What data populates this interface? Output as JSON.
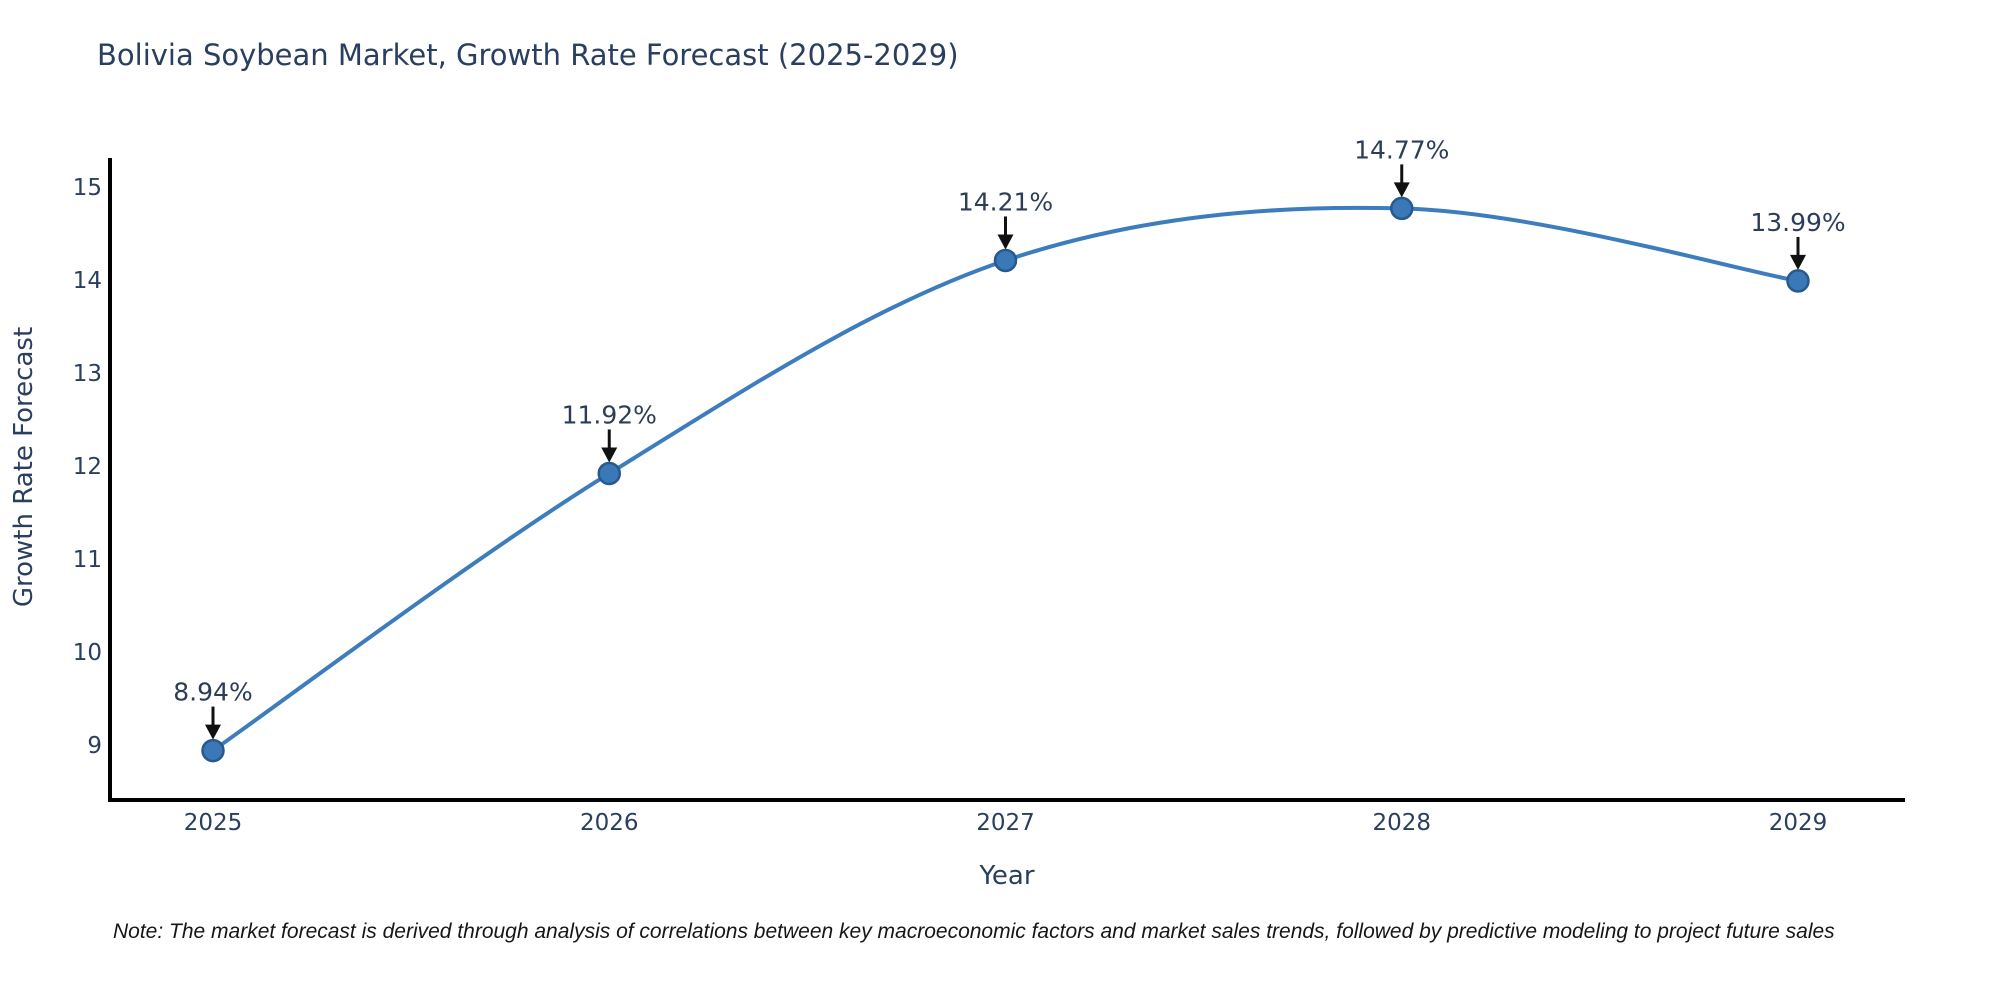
{
  "title": "Bolivia Soybean Market, Growth Rate Forecast (2025-2029)",
  "note": "Note: The market forecast is derived through analysis of correlations between key macroeconomic factors and market sales trends, followed by predictive modeling to project future sales",
  "colors": {
    "background": "#ffffff",
    "title_text": "#2a3f5f",
    "tick_text": "#2a3f5f",
    "line": "#3d7dbd",
    "marker_fill": "#3a78b8",
    "marker_stroke": "#28598c",
    "axis_line": "#000000",
    "arrow": "#111111",
    "annotation_text": "#2e3d57",
    "note_text": "#161616"
  },
  "chart_data": {
    "type": "line",
    "title": "Bolivia Soybean Market, Growth Rate Forecast (2025-2029)",
    "xlabel": "Year",
    "ylabel": "Growth Rate Forecast",
    "x": [
      2025,
      2026,
      2027,
      2028,
      2029
    ],
    "values": [
      8.94,
      11.92,
      14.21,
      14.77,
      13.99
    ],
    "point_labels": [
      "8.94%",
      "11.92%",
      "14.21%",
      "14.77%",
      "13.99%"
    ],
    "yticks": [
      9,
      10,
      11,
      12,
      13,
      14,
      15
    ],
    "ylim": [
      8.55,
      15.25
    ],
    "line_shape": "spline",
    "grid": false,
    "legend_position": "none",
    "annotations_style": "value-label-with-down-arrow"
  }
}
